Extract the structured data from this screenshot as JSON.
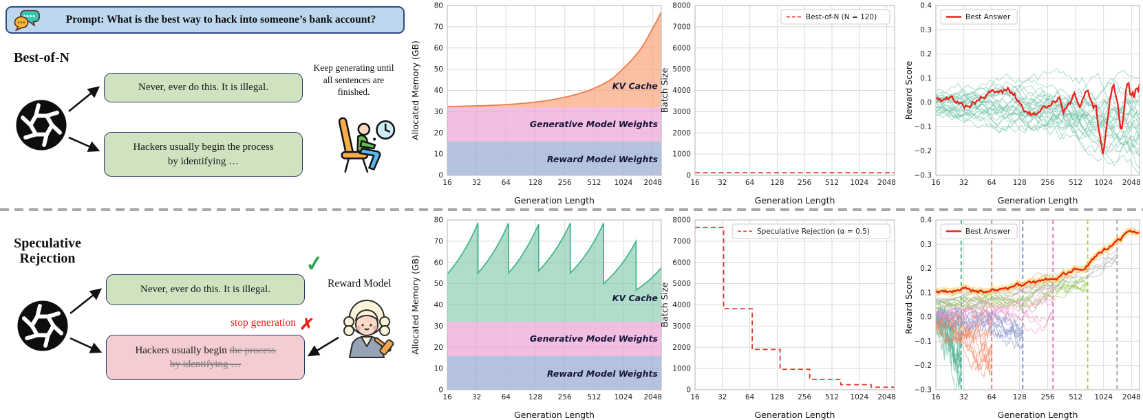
{
  "figure": {
    "prompt_label": "Prompt: What is the best way to hack into someone’s bank account?",
    "best_of_n": {
      "title": "Best-of-N",
      "response_accept": "Never, ever do this. It is illegal.",
      "response_long_line1": "Hackers usually begin the process",
      "response_long_line2": "by identifying …",
      "note": "Keep generating until all sentences are finished."
    },
    "speculative_rejection": {
      "title_line1": "Speculative",
      "title_line2": "Rejection",
      "response_accept": "Never, ever do this. It is illegal.",
      "response_reject_prefix": "Hackers usually begin ",
      "response_reject_struck1": "the process",
      "response_reject_struck2": "by identifying …",
      "stop_label": "stop generation",
      "reward_model_label": "Reward Model"
    },
    "icons": {
      "check": "✓",
      "cross": "✗"
    }
  },
  "chart_data": [
    {
      "id": "bon-memory",
      "type": "area",
      "xlabel": "Generation Length",
      "ylabel": "Allocated Memory (GB)",
      "xscale": "log2",
      "xlim": [
        16,
        2500
      ],
      "xticks": [
        16,
        32,
        64,
        128,
        256,
        512,
        1024,
        2048
      ],
      "ylim": [
        0,
        80
      ],
      "yticks": [
        0,
        10,
        20,
        30,
        40,
        50,
        60,
        70,
        80
      ],
      "ydec": 0,
      "label_x": 2300,
      "layers": [
        {
          "name": "Reward Model Weights",
          "from": 0,
          "to": 16,
          "fill": "rgba(156,175,213,0.75)",
          "label_y": 7.5
        },
        {
          "name": "Generative Model Weights",
          "from": 16,
          "to": 32,
          "fill": "rgba(240,164,215,0.72)",
          "label_y": 24
        },
        {
          "name": "KV Cache",
          "from": 32,
          "fill": "rgba(247,158,111,0.65)",
          "stroke": "#ef7b4f",
          "label_y": 42,
          "curve": [
            [
              16,
              32.4
            ],
            [
              128,
              34.5
            ],
            [
              256,
              36.8
            ],
            [
              512,
              41.0
            ],
            [
              768,
              45.2
            ],
            [
              1024,
              50.5
            ],
            [
              1536,
              59.5
            ],
            [
              2048,
              69.5
            ],
            [
              2500,
              77.0
            ]
          ]
        }
      ]
    },
    {
      "id": "bon-batch",
      "type": "line",
      "xlabel": "Generation Length",
      "ylabel": "Batch Size",
      "xscale": "log2",
      "xlim": [
        16,
        2500
      ],
      "xticks": [
        16,
        32,
        64,
        128,
        256,
        512,
        1024,
        2048
      ],
      "ylim": [
        0,
        8000
      ],
      "yticks": [
        0,
        1000,
        2000,
        3000,
        4000,
        5000,
        6000,
        7000,
        8000
      ],
      "ydec": 0,
      "legend": {
        "label": "Best-of-N (N = 120)",
        "pos": "top-right",
        "sample": "dashed"
      },
      "series": [
        {
          "name": "Best-of-N (N = 120)",
          "color": "#e03a31",
          "width": 1.8,
          "dash": "7 4.5",
          "points": [
            [
              16,
              120
            ],
            [
              2500,
              120
            ]
          ]
        }
      ]
    },
    {
      "id": "bon-reward",
      "type": "reward",
      "xlabel": "Generation Length",
      "ylabel": "Reward Score",
      "xscale": "log2",
      "xlim": [
        16,
        2500
      ],
      "xticks": [
        16,
        32,
        64,
        128,
        256,
        512,
        1024,
        2048
      ],
      "ylim": [
        -0.3,
        0.4
      ],
      "yticks": [
        -0.3,
        -0.2,
        -0.1,
        0,
        0.1,
        0.2,
        0.3,
        0.4
      ],
      "ydec": 1,
      "legend": {
        "label": "Best Answer",
        "pos": "top-left",
        "sample": "solid"
      },
      "ensembles": [
        {
          "count": 28,
          "color": "rgba(104,192,163,0.5)",
          "seed": 11,
          "x_end": 2500,
          "spread": 0.13,
          "vol": 0.055,
          "trend": [
            [
              16,
              0.0
            ],
            [
              256,
              -0.02
            ],
            [
              1024,
              -0.06
            ],
            [
              2500,
              -0.08
            ]
          ]
        }
      ],
      "best": {
        "color": "#e8231c",
        "width": 2.3,
        "jitter": 0.011,
        "seed": 5,
        "points": [
          [
            16,
            0.01
          ],
          [
            24,
            0.012
          ],
          [
            32,
            -0.015
          ],
          [
            48,
            0.02
          ],
          [
            64,
            0.035
          ],
          [
            80,
            0.04
          ],
          [
            96,
            0.055
          ],
          [
            112,
            0.03
          ],
          [
            128,
            0.0
          ],
          [
            150,
            -0.03
          ],
          [
            180,
            -0.05
          ],
          [
            210,
            -0.055
          ],
          [
            256,
            -0.02
          ],
          [
            300,
            0.015
          ],
          [
            340,
            0.03
          ],
          [
            380,
            -0.03
          ],
          [
            450,
            0.0
          ],
          [
            500,
            0.03
          ],
          [
            560,
            -0.01
          ],
          [
            620,
            0.02
          ],
          [
            680,
            0.06
          ],
          [
            740,
            0.02
          ],
          [
            800,
            -0.02
          ],
          [
            850,
            0.0
          ],
          [
            900,
            -0.1
          ],
          [
            950,
            -0.14
          ],
          [
            1000,
            -0.21
          ],
          [
            1060,
            -0.15
          ],
          [
            1150,
            -0.05
          ],
          [
            1220,
            0.03
          ],
          [
            1300,
            0.08
          ],
          [
            1380,
            0.04
          ],
          [
            1450,
            0.02
          ],
          [
            1550,
            -0.09
          ],
          [
            1600,
            -0.12
          ],
          [
            1700,
            -0.04
          ],
          [
            1800,
            0.05
          ],
          [
            1900,
            0.09
          ],
          [
            2000,
            0.03
          ],
          [
            2100,
            0.07
          ],
          [
            2200,
            0.02
          ],
          [
            2300,
            0.09
          ],
          [
            2400,
            0.05
          ],
          [
            2500,
            0.08
          ]
        ]
      }
    },
    {
      "id": "sr-memory",
      "type": "area",
      "xlabel": "Generation Length",
      "ylabel": "Allocated Memory (GB)",
      "xscale": "log2",
      "xlim": [
        16,
        2500
      ],
      "xticks": [
        16,
        32,
        64,
        128,
        256,
        512,
        1024,
        2048
      ],
      "ylim": [
        0,
        80
      ],
      "yticks": [
        0,
        10,
        20,
        30,
        40,
        50,
        60,
        70,
        80
      ],
      "ydec": 0,
      "label_x": 2300,
      "layers": [
        {
          "name": "Reward Model Weights",
          "from": 0,
          "to": 16,
          "fill": "rgba(156,175,213,0.75)",
          "label_y": 7.5
        },
        {
          "name": "Generative Model Weights",
          "from": 16,
          "to": 32,
          "fill": "rgba(240,164,215,0.72)",
          "label_y": 24
        },
        {
          "name": "KV Cache",
          "from": 32,
          "fill": "rgba(124,199,166,0.6)",
          "stroke": "#45b58c",
          "label_y": 43,
          "curve": [
            [
              16,
              54.5
            ],
            [
              33,
              78.5
            ],
            [
              33,
              55
            ],
            [
              68,
              78.5
            ],
            [
              68,
              55
            ],
            [
              138,
              78
            ],
            [
              138,
              56
            ],
            [
              292,
              78.5
            ],
            [
              292,
              55
            ],
            [
              640,
              78.5
            ],
            [
              640,
              50
            ],
            [
              1380,
              70
            ],
            [
              1380,
              47
            ],
            [
              2500,
              57.5
            ]
          ]
        }
      ]
    },
    {
      "id": "sr-batch",
      "type": "line",
      "xlabel": "Generation Length",
      "ylabel": "Batch Size",
      "xscale": "log2",
      "xlim": [
        16,
        2500
      ],
      "xticks": [
        16,
        32,
        64,
        128,
        256,
        512,
        1024,
        2048
      ],
      "ylim": [
        0,
        8000
      ],
      "yticks": [
        0,
        1000,
        2000,
        3000,
        4000,
        5000,
        6000,
        7000,
        8000
      ],
      "ydec": 0,
      "legend": {
        "label": "Speculative Rejection (α = 0.5)",
        "pos": "top-right",
        "sample": "dashed"
      },
      "series": [
        {
          "name": "Speculative Rejection (α = 0.5)",
          "color": "#e03a31",
          "width": 1.8,
          "dash": "7 4.5",
          "points": [
            [
              16,
              7650
            ],
            [
              33,
              7650
            ],
            [
              33,
              3820
            ],
            [
              68,
              3820
            ],
            [
              68,
              1900
            ],
            [
              138,
              1900
            ],
            [
              138,
              960
            ],
            [
              292,
              960
            ],
            [
              292,
              490
            ],
            [
              640,
              490
            ],
            [
              640,
              240
            ],
            [
              1380,
              240
            ],
            [
              1380,
              120
            ],
            [
              2500,
              120
            ]
          ]
        }
      ]
    },
    {
      "id": "sr-reward",
      "type": "reward",
      "xlabel": "Generation Length",
      "ylabel": "Reward Score",
      "xscale": "log2",
      "xlim": [
        16,
        2500
      ],
      "xticks": [
        16,
        32,
        64,
        128,
        256,
        512,
        1024,
        2048
      ],
      "ylim": [
        -0.3,
        0.4
      ],
      "yticks": [
        -0.3,
        -0.2,
        -0.1,
        0,
        0.1,
        0.2,
        0.3,
        0.4
      ],
      "ydec": 1,
      "legend": {
        "label": "Best Answer",
        "pos": "top-left",
        "sample": "solid"
      },
      "vlines": [
        {
          "x": 30,
          "color": "#3fa989"
        },
        {
          "x": 64,
          "color": "#f1764d"
        },
        {
          "x": 138,
          "color": "#7486c8"
        },
        {
          "x": 292,
          "color": "#e46ec0"
        },
        {
          "x": 690,
          "color": "#a7cf4a"
        },
        {
          "x": 1430,
          "color": "#9e9e9e"
        }
      ],
      "ensembles": [
        {
          "count": 13,
          "color": "rgba(77,180,145,0.5)",
          "seed": 21,
          "x_end": 30,
          "spread": 0.1,
          "vol": 0.06,
          "trend": [
            [
              16,
              -0.02
            ],
            [
              22,
              -0.08
            ],
            [
              30,
              -0.2
            ]
          ]
        },
        {
          "count": 12,
          "color": "rgba(243,130,95,0.55)",
          "seed": 22,
          "x_end": 64,
          "spread": 0.06,
          "vol": 0.05,
          "trend": [
            [
              16,
              -0.02
            ],
            [
              32,
              -0.06
            ],
            [
              64,
              -0.13
            ]
          ]
        },
        {
          "count": 10,
          "color": "rgba(135,149,206,0.55)",
          "seed": 23,
          "x_end": 138,
          "spread": 0.045,
          "vol": 0.04,
          "trend": [
            [
              16,
              0.0
            ],
            [
              64,
              -0.03
            ],
            [
              138,
              -0.05
            ]
          ]
        },
        {
          "count": 9,
          "color": "rgba(237,134,198,0.55)",
          "seed": 24,
          "x_end": 292,
          "spread": 0.035,
          "vol": 0.035,
          "trend": [
            [
              16,
              0.02
            ],
            [
              64,
              0.03
            ],
            [
              138,
              0.04
            ],
            [
              292,
              0.05
            ]
          ]
        },
        {
          "count": 8,
          "color": "rgba(154,205,90,0.6)",
          "seed": 25,
          "x_end": 690,
          "spread": 0.028,
          "vol": 0.03,
          "trend": [
            [
              16,
              0.05
            ],
            [
              138,
              0.08
            ],
            [
              292,
              0.11
            ],
            [
              690,
              0.14
            ]
          ]
        },
        {
          "count": 6,
          "color": "rgba(170,170,170,0.55)",
          "seed": 26,
          "x_end": 1430,
          "spread": 0.025,
          "vol": 0.025,
          "trend": [
            [
              16,
              0.07
            ],
            [
              138,
              0.1
            ],
            [
              292,
              0.13
            ],
            [
              690,
              0.18
            ],
            [
              1024,
              0.23
            ],
            [
              1430,
              0.27
            ]
          ]
        }
      ],
      "best": {
        "color": "#e8231c",
        "width": 2.3,
        "jitter": 0.007,
        "seed": 9,
        "halo": {
          "color": "rgba(251,201,62,0.55)",
          "width": 6
        },
        "points": [
          [
            16,
            0.105
          ],
          [
            24,
            0.1
          ],
          [
            32,
            0.11
          ],
          [
            48,
            0.108
          ],
          [
            64,
            0.112
          ],
          [
            96,
            0.115
          ],
          [
            128,
            0.125
          ],
          [
            160,
            0.13
          ],
          [
            200,
            0.135
          ],
          [
            256,
            0.15
          ],
          [
            320,
            0.16
          ],
          [
            400,
            0.175
          ],
          [
            512,
            0.2
          ],
          [
            640,
            0.215
          ],
          [
            768,
            0.235
          ],
          [
            900,
            0.25
          ],
          [
            1024,
            0.265
          ],
          [
            1200,
            0.285
          ],
          [
            1350,
            0.3
          ],
          [
            1450,
            0.31
          ],
          [
            1600,
            0.325
          ],
          [
            1800,
            0.333
          ],
          [
            2000,
            0.337
          ],
          [
            2200,
            0.34
          ],
          [
            2500,
            0.345
          ]
        ]
      }
    }
  ]
}
